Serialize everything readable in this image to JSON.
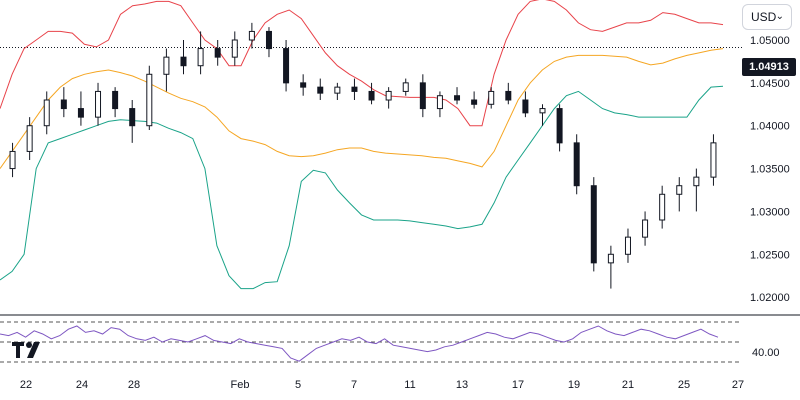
{
  "currency": {
    "label": "USD",
    "chevron": "⌄",
    "chevron_icon": "chevron-down-icon"
  },
  "last_price": "1.04913",
  "logo": {
    "icon": "tradingview-logo-icon"
  },
  "colors": {
    "candle": "#131722",
    "upper_band": "#e8434a",
    "middle_band": "#f5a623",
    "lower_band": "#1aa389",
    "rsi": "#7e57c2",
    "grid_dash": "#555555"
  },
  "chart_data": [
    {
      "type": "candlestick",
      "title": "",
      "overlays": [
        "Bollinger Bands (upper, middle, lower)"
      ],
      "y_ticks": [
        "1.05000",
        "1.04500",
        "1.04000",
        "1.03500",
        "1.03000",
        "1.02500",
        "1.02000"
      ],
      "ylim": [
        1.0185,
        1.0535
      ],
      "x_ticks": [
        "22",
        "24",
        "28",
        "Feb",
        "5",
        "7",
        "11",
        "13",
        "17",
        "19",
        "21",
        "25",
        "27"
      ],
      "last_price": 1.04913,
      "upper_band": [
        1.042,
        1.046,
        1.049,
        1.05,
        1.051,
        1.051,
        1.0508,
        1.0495,
        1.0492,
        1.05,
        1.053,
        1.054,
        1.0542,
        1.0545,
        1.0545,
        1.054,
        1.052,
        1.05,
        1.049,
        1.047,
        1.047,
        1.05,
        1.052,
        1.053,
        1.0535,
        1.0525,
        1.0505,
        1.0485,
        1.047,
        1.046,
        1.0452,
        1.0442,
        1.0435,
        1.0434,
        1.0433,
        1.0433,
        1.0433,
        1.043,
        1.042,
        1.04,
        1.04,
        1.046,
        1.05,
        1.053,
        1.0545,
        1.0548,
        1.0545,
        1.0535,
        1.052,
        1.0512,
        1.051,
        1.0515,
        1.052,
        1.052,
        1.0523,
        1.0532,
        1.053,
        1.0525,
        1.052,
        1.052,
        1.0518
      ],
      "middle_band": [
        1.035,
        1.037,
        1.039,
        1.041,
        1.043,
        1.0445,
        1.0455,
        1.046,
        1.0463,
        1.0465,
        1.0462,
        1.0458,
        1.0452,
        1.0445,
        1.0438,
        1.0432,
        1.0428,
        1.0422,
        1.041,
        1.0394,
        1.0385,
        1.0382,
        1.0378,
        1.037,
        1.0365,
        1.0364,
        1.0365,
        1.0368,
        1.0372,
        1.0374,
        1.0374,
        1.037,
        1.0368,
        1.0367,
        1.0366,
        1.0365,
        1.0363,
        1.0362,
        1.0359,
        1.0356,
        1.0352,
        1.037,
        1.04,
        1.043,
        1.045,
        1.0465,
        1.0475,
        1.048,
        1.0482,
        1.0482,
        1.0482,
        1.0481,
        1.048,
        1.0475,
        1.0471,
        1.0473,
        1.0478,
        1.0482,
        1.0485,
        1.0488,
        1.049
      ],
      "lower_band": [
        1.022,
        1.023,
        1.025,
        1.035,
        1.038,
        1.0385,
        1.039,
        1.0395,
        1.04,
        1.0405,
        1.0407,
        1.0406,
        1.0405,
        1.0403,
        1.0397,
        1.0392,
        1.0385,
        1.035,
        1.026,
        1.0225,
        1.021,
        1.021,
        1.0217,
        1.0218,
        1.026,
        1.0335,
        1.0348,
        1.0345,
        1.0325,
        1.031,
        1.0296,
        1.029,
        1.029,
        1.029,
        1.0289,
        1.0287,
        1.0285,
        1.0283,
        1.028,
        1.0282,
        1.0285,
        1.031,
        1.034,
        1.036,
        1.038,
        1.04,
        1.042,
        1.0435,
        1.044,
        1.043,
        1.042,
        1.0415,
        1.0413,
        1.041,
        1.041,
        1.041,
        1.041,
        1.041,
        1.043,
        1.0445,
        1.0446
      ],
      "ohlc": [
        [
          1.035,
          1.038,
          1.034,
          1.037
        ],
        [
          1.037,
          1.041,
          1.036,
          1.04
        ],
        [
          1.04,
          1.044,
          1.039,
          1.043
        ],
        [
          1.043,
          1.0445,
          1.041,
          1.042
        ],
        [
          1.042,
          1.044,
          1.04,
          1.041
        ],
        [
          1.041,
          1.045,
          1.04,
          1.044
        ],
        [
          1.044,
          1.0445,
          1.041,
          1.042
        ],
        [
          1.042,
          1.043,
          1.038,
          1.04
        ],
        [
          1.04,
          1.047,
          1.0395,
          1.046
        ],
        [
          1.046,
          1.049,
          1.044,
          1.048
        ],
        [
          1.048,
          1.05,
          1.046,
          1.047
        ],
        [
          1.047,
          1.051,
          1.046,
          1.049
        ],
        [
          1.049,
          1.05,
          1.047,
          1.048
        ],
        [
          1.048,
          1.051,
          1.047,
          1.05
        ],
        [
          1.05,
          1.052,
          1.049,
          1.051
        ],
        [
          1.051,
          1.0515,
          1.048,
          1.049
        ],
        [
          1.049,
          1.05,
          1.044,
          1.045
        ],
        [
          1.045,
          1.046,
          1.0435,
          1.0445
        ],
        [
          1.0445,
          1.0455,
          1.043,
          1.0438
        ],
        [
          1.0438,
          1.045,
          1.043,
          1.0445
        ],
        [
          1.0445,
          1.0455,
          1.043,
          1.044
        ],
        [
          1.044,
          1.045,
          1.0425,
          1.043
        ],
        [
          1.043,
          1.0445,
          1.042,
          1.044
        ],
        [
          1.044,
          1.0455,
          1.0435,
          1.045
        ],
        [
          1.045,
          1.046,
          1.041,
          1.042
        ],
        [
          1.042,
          1.044,
          1.041,
          1.0435
        ],
        [
          1.0435,
          1.0445,
          1.0425,
          1.043
        ],
        [
          1.043,
          1.044,
          1.042,
          1.0425
        ],
        [
          1.0425,
          1.0445,
          1.042,
          1.044
        ],
        [
          1.044,
          1.045,
          1.0425,
          1.043
        ],
        [
          1.043,
          1.044,
          1.041,
          1.0415
        ],
        [
          1.0415,
          1.0425,
          1.04,
          1.042
        ],
        [
          1.042,
          1.0425,
          1.037,
          1.038
        ],
        [
          1.038,
          1.039,
          1.032,
          1.033
        ],
        [
          1.033,
          1.034,
          1.023,
          1.024
        ],
        [
          1.024,
          1.026,
          1.021,
          1.025
        ],
        [
          1.025,
          1.028,
          1.024,
          1.027
        ],
        [
          1.027,
          1.03,
          1.026,
          1.029
        ],
        [
          1.029,
          1.033,
          1.028,
          1.032
        ],
        [
          1.032,
          1.034,
          1.03,
          1.033
        ],
        [
          1.033,
          1.035,
          1.03,
          1.034
        ],
        [
          1.034,
          1.039,
          1.033,
          1.038
        ]
      ],
      "series": [
        {
          "name": "",
          "note": "visible EUR/USD-style daily candles rendered from ohlc"
        }
      ]
    },
    {
      "type": "line",
      "title": "",
      "y_ticks": [
        "40.00"
      ],
      "rsi_values": [
        55,
        54,
        56,
        53,
        57,
        55,
        52,
        54,
        58,
        60,
        56,
        57,
        55,
        59,
        58,
        54,
        52,
        51,
        53,
        50,
        52,
        51,
        50,
        52,
        54,
        51,
        50,
        49,
        52,
        50,
        49,
        48,
        47,
        46,
        40,
        38,
        42,
        46,
        48,
        50,
        52,
        51,
        53,
        50,
        49,
        52,
        48,
        47,
        46,
        45,
        44,
        45,
        47,
        48,
        50,
        52,
        54,
        56,
        55,
        53,
        52,
        54,
        56,
        55,
        53,
        51,
        50,
        52,
        56,
        58,
        60,
        57,
        55,
        54,
        56,
        58,
        57,
        55,
        53,
        52,
        54,
        56,
        58,
        55,
        53
      ]
    }
  ]
}
